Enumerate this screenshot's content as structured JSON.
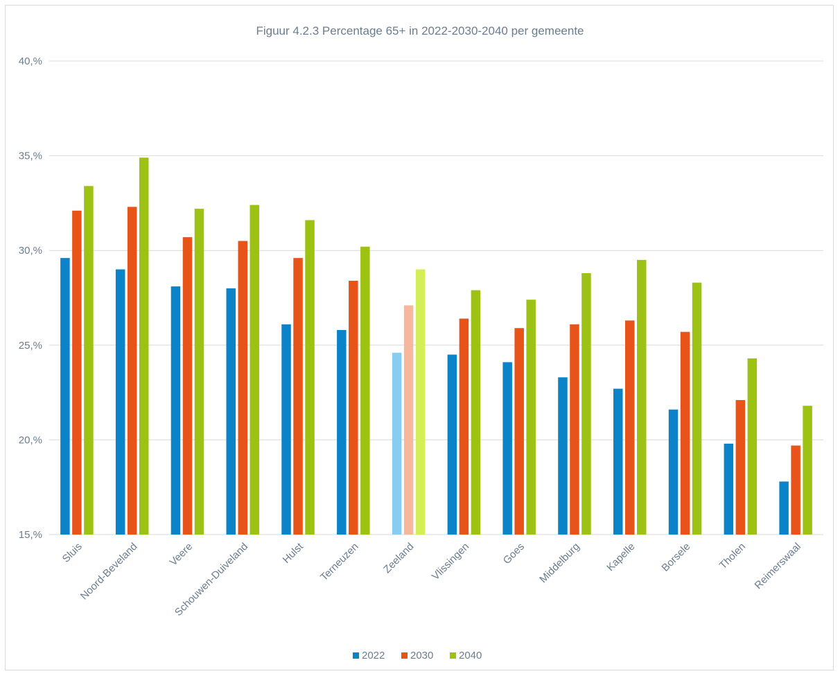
{
  "chart_data": {
    "type": "bar",
    "title": "Figuur 4.2.3 Percentage 65+ in 2022-2030-2040 per gemeente",
    "xlabel": "",
    "ylabel": "",
    "ylim": [
      15,
      40
    ],
    "yticks": [
      15,
      20,
      25,
      30,
      35,
      40
    ],
    "ytick_labels": [
      "15,%",
      "20,%",
      "25,%",
      "30,%",
      "35,%",
      "40,%"
    ],
    "grid": true,
    "legend_position": "bottom",
    "categories": [
      "Sluis",
      "Noord-Beveland",
      "Veere",
      "Schouwen-Duiveland",
      "Hulst",
      "Terneuzen",
      "Zeeland",
      "Vlissingen",
      "Goes",
      "Middelburg",
      "Kapelle",
      "Borsele",
      "Tholen",
      "Reimerswaal"
    ],
    "highlight_category": "Zeeland",
    "series": [
      {
        "name": "2022",
        "color": "#0a83c8",
        "highlight_color": "#86cdf0",
        "values": [
          29.6,
          29.0,
          28.1,
          28.0,
          26.1,
          25.8,
          24.6,
          24.5,
          24.1,
          23.3,
          22.7,
          21.6,
          19.8,
          17.8
        ]
      },
      {
        "name": "2030",
        "color": "#e8531a",
        "highlight_color": "#f6b79c",
        "values": [
          32.1,
          32.3,
          30.7,
          30.5,
          29.6,
          28.4,
          27.1,
          26.4,
          25.9,
          26.1,
          26.3,
          25.7,
          22.1,
          19.7
        ]
      },
      {
        "name": "2040",
        "color": "#9dc214",
        "highlight_color": "#d3ef55",
        "values": [
          33.4,
          34.9,
          32.2,
          32.4,
          31.6,
          30.2,
          29.0,
          27.9,
          27.4,
          28.8,
          29.5,
          28.3,
          24.3,
          21.8
        ]
      }
    ]
  }
}
